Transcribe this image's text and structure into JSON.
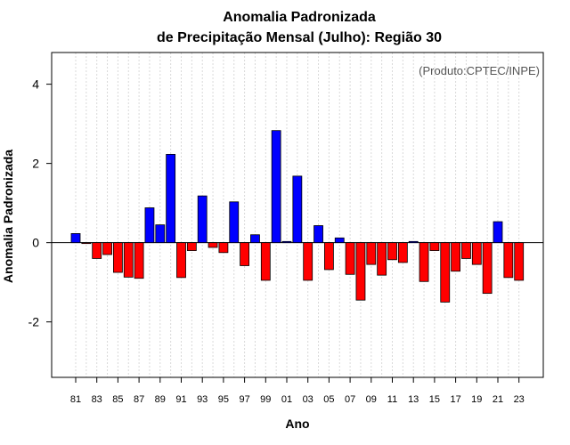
{
  "chart_data": {
    "type": "bar",
    "title_line1": "Anomalia Padronizada",
    "title_line2": "de Precipitação Mensal (Julho): Região 30",
    "xlabel": "Ano",
    "ylabel": "Anomalia Padronizada",
    "annotation": "(Produto:CPTEC/INPE)",
    "ylim": [
      -3.4,
      4.8
    ],
    "yticks": [
      -2,
      0,
      2,
      4
    ],
    "ytick_labels": [
      "-2",
      "0",
      "2",
      "4"
    ],
    "categories": [
      "81",
      "82",
      "83",
      "84",
      "85",
      "86",
      "87",
      "88",
      "89",
      "90",
      "91",
      "92",
      "93",
      "94",
      "95",
      "96",
      "97",
      "98",
      "99",
      "00",
      "01",
      "02",
      "03",
      "04",
      "05",
      "06",
      "07",
      "08",
      "09",
      "10",
      "11",
      "12",
      "13",
      "14",
      "15",
      "16",
      "17",
      "18",
      "19",
      "20",
      "21",
      "22",
      "23"
    ],
    "xtick_labels": [
      "81",
      "83",
      "85",
      "87",
      "89",
      "91",
      "93",
      "95",
      "97",
      "99",
      "01",
      "03",
      "05",
      "07",
      "09",
      "11",
      "13",
      "15",
      "17",
      "19",
      "21",
      "23"
    ],
    "values": [
      0.23,
      -0.02,
      -0.4,
      -0.3,
      -0.75,
      -0.87,
      -0.9,
      0.88,
      0.45,
      2.23,
      -0.88,
      -0.2,
      1.18,
      -0.12,
      -0.25,
      1.03,
      -0.58,
      0.2,
      -0.95,
      2.83,
      0.03,
      1.68,
      -0.95,
      0.43,
      -0.68,
      0.12,
      -0.8,
      -1.45,
      -0.55,
      -0.82,
      -0.43,
      -0.5,
      0.03,
      -0.98,
      -0.2,
      -1.5,
      -0.72,
      -0.4,
      -0.55,
      -1.28,
      0.53,
      -0.88,
      -0.95
    ],
    "colors": {
      "positive": "#0000ff",
      "negative": "#ff0000",
      "grid": "#d9d9d9"
    }
  }
}
